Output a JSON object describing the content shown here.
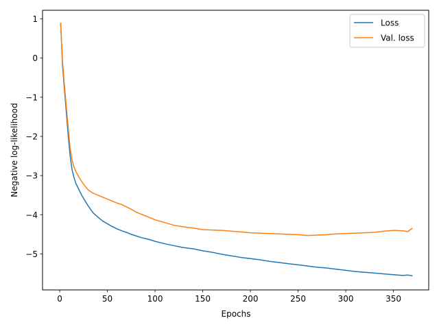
{
  "chart_data": {
    "type": "line",
    "title": "",
    "xlabel": "Epochs",
    "ylabel": "Negative log-likelihood",
    "xlim": [
      -18,
      387
    ],
    "ylim": [
      -5.92,
      1.22
    ],
    "xticks": [
      0,
      50,
      100,
      150,
      200,
      250,
      300,
      350
    ],
    "yticks": [
      1,
      0,
      -1,
      -2,
      -3,
      -4,
      -5
    ],
    "ytick_labels": [
      "1",
      "0",
      "−1",
      "−2",
      "−3",
      "−4",
      "−5"
    ],
    "grid": false,
    "legend_position": "top-right",
    "series": [
      {
        "name": "Loss",
        "color": "#1f77b4",
        "x": [
          1,
          3,
          5,
          7,
          9,
          11,
          13,
          15,
          17,
          20,
          23,
          26,
          30,
          35,
          40,
          45,
          50,
          55,
          60,
          65,
          70,
          75,
          80,
          85,
          90,
          95,
          100,
          110,
          120,
          130,
          140,
          150,
          160,
          170,
          180,
          190,
          200,
          210,
          220,
          230,
          240,
          250,
          260,
          270,
          280,
          290,
          300,
          310,
          320,
          330,
          340,
          350,
          360,
          365,
          370
        ],
        "y": [
          0.9,
          -0.2,
          -0.8,
          -1.4,
          -2.0,
          -2.5,
          -2.85,
          -3.05,
          -3.2,
          -3.35,
          -3.5,
          -3.62,
          -3.78,
          -3.95,
          -4.06,
          -4.16,
          -4.23,
          -4.3,
          -4.36,
          -4.41,
          -4.45,
          -4.5,
          -4.54,
          -4.58,
          -4.61,
          -4.64,
          -4.68,
          -4.74,
          -4.79,
          -4.84,
          -4.87,
          -4.92,
          -4.96,
          -5.01,
          -5.05,
          -5.09,
          -5.12,
          -5.15,
          -5.19,
          -5.22,
          -5.25,
          -5.28,
          -5.31,
          -5.34,
          -5.36,
          -5.39,
          -5.42,
          -5.45,
          -5.47,
          -5.49,
          -5.51,
          -5.53,
          -5.55,
          -5.54,
          -5.56
        ]
      },
      {
        "name": "Val. loss",
        "color": "#ff7f0e",
        "x": [
          1,
          3,
          5,
          7,
          9,
          11,
          13,
          15,
          17,
          20,
          23,
          26,
          30,
          35,
          40,
          45,
          50,
          55,
          60,
          65,
          70,
          75,
          80,
          85,
          90,
          95,
          100,
          110,
          120,
          130,
          140,
          150,
          160,
          170,
          180,
          190,
          200,
          210,
          220,
          230,
          240,
          250,
          260,
          270,
          280,
          290,
          300,
          310,
          320,
          330,
          340,
          350,
          360,
          365,
          370
        ],
        "y": [
          0.9,
          -0.1,
          -0.7,
          -1.25,
          -1.8,
          -2.3,
          -2.6,
          -2.78,
          -2.9,
          -3.03,
          -3.15,
          -3.25,
          -3.37,
          -3.45,
          -3.5,
          -3.55,
          -3.6,
          -3.65,
          -3.7,
          -3.74,
          -3.8,
          -3.86,
          -3.93,
          -3.98,
          -4.03,
          -4.08,
          -4.13,
          -4.2,
          -4.27,
          -4.31,
          -4.34,
          -4.38,
          -4.39,
          -4.4,
          -4.42,
          -4.44,
          -4.46,
          -4.47,
          -4.48,
          -4.49,
          -4.5,
          -4.51,
          -4.53,
          -4.52,
          -4.51,
          -4.49,
          -4.48,
          -4.47,
          -4.46,
          -4.45,
          -4.42,
          -4.4,
          -4.41,
          -4.43,
          -4.34
        ]
      }
    ]
  }
}
